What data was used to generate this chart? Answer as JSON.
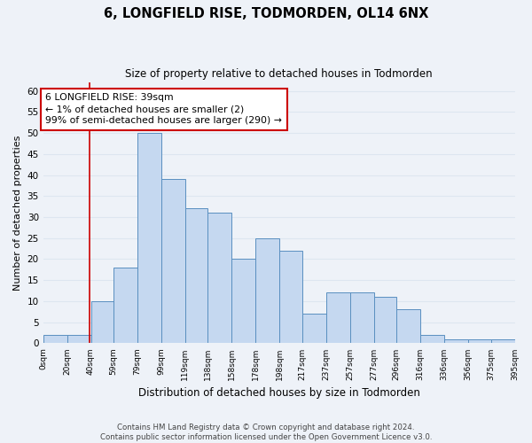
{
  "title": "6, LONGFIELD RISE, TODMORDEN, OL14 6NX",
  "subtitle": "Size of property relative to detached houses in Todmorden",
  "xlabel": "Distribution of detached houses by size in Todmorden",
  "ylabel": "Number of detached properties",
  "bar_left_edges": [
    0,
    20,
    40,
    59,
    79,
    99,
    119,
    138,
    158,
    178,
    198,
    217,
    237,
    257,
    277,
    296,
    316,
    336,
    356,
    375
  ],
  "bar_widths": [
    20,
    20,
    19,
    20,
    20,
    20,
    19,
    20,
    20,
    20,
    19,
    20,
    20,
    20,
    19,
    20,
    20,
    20,
    19,
    20
  ],
  "bar_heights": [
    2,
    2,
    10,
    18,
    50,
    39,
    32,
    31,
    20,
    25,
    22,
    7,
    12,
    12,
    11,
    8,
    2,
    1,
    1,
    1
  ],
  "bar_color": "#c5d8f0",
  "bar_edge_color": "#5a8fc0",
  "reference_line_x": 39,
  "reference_line_color": "#cc0000",
  "ylim": [
    0,
    62
  ],
  "yticks": [
    0,
    5,
    10,
    15,
    20,
    25,
    30,
    35,
    40,
    45,
    50,
    55,
    60
  ],
  "xtick_labels": [
    "0sqm",
    "20sqm",
    "40sqm",
    "59sqm",
    "79sqm",
    "99sqm",
    "119sqm",
    "138sqm",
    "158sqm",
    "178sqm",
    "198sqm",
    "217sqm",
    "237sqm",
    "257sqm",
    "277sqm",
    "296sqm",
    "316sqm",
    "336sqm",
    "356sqm",
    "375sqm",
    "395sqm"
  ],
  "xtick_positions": [
    0,
    20,
    40,
    59,
    79,
    99,
    119,
    138,
    158,
    178,
    198,
    217,
    237,
    257,
    277,
    296,
    316,
    336,
    356,
    375,
    395
  ],
  "annotation_text": "6 LONGFIELD RISE: 39sqm\n← 1% of detached houses are smaller (2)\n99% of semi-detached houses are larger (290) →",
  "annotation_box_color": "#ffffff",
  "annotation_box_edge": "#cc0000",
  "footer_text": "Contains HM Land Registry data © Crown copyright and database right 2024.\nContains public sector information licensed under the Open Government Licence v3.0.",
  "grid_color": "#dde6f0",
  "background_color": "#eef2f8"
}
